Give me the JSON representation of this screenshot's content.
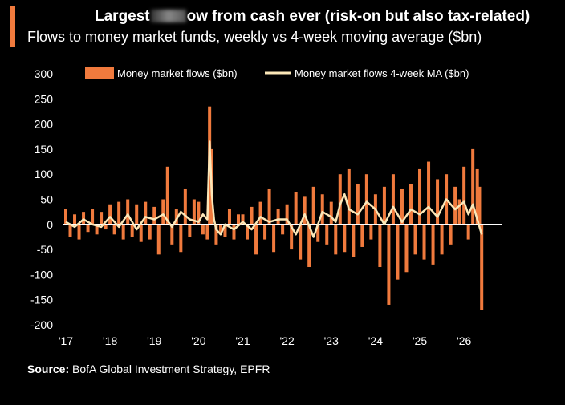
{
  "header": {
    "title_prefix": "Largest",
    "title_suffix": "ow from cash ever (risk-on but also tax-related)",
    "subtitle": "Flows to money market funds, weekly vs 4-week moving average ($bn)"
  },
  "source": {
    "label": "Source:",
    "text": " BofA Global Investment Strategy, EPFR"
  },
  "colors": {
    "bar": "#f07a3d",
    "line": "#fbe7b8",
    "background": "#000000",
    "zero_line": "#ffffff"
  },
  "chart_data": {
    "type": "bar",
    "ylim": [
      -200,
      300
    ],
    "yticks": [
      300,
      250,
      200,
      150,
      100,
      50,
      0,
      -50,
      -100,
      -150,
      -200
    ],
    "xlim": [
      2017,
      2026.85
    ],
    "xticks": [
      {
        "label": "'17",
        "x": 2017
      },
      {
        "label": "'18",
        "x": 2018
      },
      {
        "label": "'19",
        "x": 2019
      },
      {
        "label": "'20",
        "x": 2020
      },
      {
        "label": "'21",
        "x": 2021
      },
      {
        "label": "'22",
        "x": 2022
      },
      {
        "label": "'23",
        "x": 2023
      },
      {
        "label": "'24",
        "x": 2024
      },
      {
        "label": "'25",
        "x": 2025
      },
      {
        "label": "'26",
        "x": 2026
      }
    ],
    "legend_position": "top",
    "series": [
      {
        "name": "Money market flows ($bn)",
        "kind": "bar",
        "x": [
          2017.0,
          2017.1,
          2017.2,
          2017.3,
          2017.4,
          2017.5,
          2017.6,
          2017.7,
          2017.8,
          2017.9,
          2018.0,
          2018.1,
          2018.2,
          2018.3,
          2018.4,
          2018.5,
          2018.6,
          2018.7,
          2018.8,
          2018.9,
          2019.0,
          2019.1,
          2019.2,
          2019.3,
          2019.4,
          2019.5,
          2019.6,
          2019.7,
          2019.8,
          2019.9,
          2020.0,
          2020.1,
          2020.2,
          2020.25,
          2020.3,
          2020.4,
          2020.5,
          2020.6,
          2020.7,
          2020.8,
          2020.9,
          2021.0,
          2021.1,
          2021.2,
          2021.3,
          2021.4,
          2021.5,
          2021.6,
          2021.7,
          2021.8,
          2021.9,
          2022.0,
          2022.1,
          2022.2,
          2022.3,
          2022.4,
          2022.5,
          2022.6,
          2022.7,
          2022.8,
          2022.9,
          2023.0,
          2023.1,
          2023.2,
          2023.3,
          2023.4,
          2023.5,
          2023.6,
          2023.7,
          2023.8,
          2023.9,
          2024.0,
          2024.1,
          2024.2,
          2024.3,
          2024.4,
          2024.5,
          2024.6,
          2024.7,
          2024.8,
          2024.9,
          2025.0,
          2025.1,
          2025.2,
          2025.3,
          2025.4,
          2025.5,
          2025.6,
          2025.7,
          2025.8,
          2025.9,
          2026.0,
          2026.1,
          2026.2,
          2026.3,
          2026.35,
          2026.4
        ],
        "values": [
          30,
          -25,
          20,
          -30,
          25,
          -15,
          30,
          -20,
          25,
          -10,
          40,
          -20,
          45,
          -30,
          50,
          -25,
          40,
          -35,
          45,
          -30,
          35,
          -60,
          50,
          115,
          -40,
          30,
          -55,
          70,
          -25,
          50,
          45,
          -20,
          -30,
          235,
          150,
          -40,
          -20,
          -25,
          30,
          -30,
          20,
          20,
          -30,
          35,
          -60,
          45,
          -30,
          70,
          -55,
          30,
          -20,
          40,
          -50,
          65,
          -70,
          55,
          -85,
          75,
          -35,
          60,
          -40,
          45,
          -60,
          100,
          -55,
          110,
          -65,
          80,
          -45,
          100,
          -30,
          60,
          -85,
          75,
          -160,
          100,
          -110,
          70,
          -95,
          80,
          -60,
          110,
          -70,
          125,
          -80,
          90,
          -60,
          100,
          -40,
          75,
          50,
          115,
          -30,
          150,
          110,
          75,
          -170
        ]
      },
      {
        "name": "Money market flows 4-week MA ($bn)",
        "kind": "line",
        "x": [
          2017.0,
          2017.2,
          2017.4,
          2017.6,
          2017.8,
          2018.0,
          2018.2,
          2018.4,
          2018.6,
          2018.8,
          2019.0,
          2019.2,
          2019.4,
          2019.6,
          2019.8,
          2020.0,
          2020.1,
          2020.2,
          2020.25,
          2020.3,
          2020.35,
          2020.4,
          2020.5,
          2020.6,
          2020.8,
          2021.0,
          2021.2,
          2021.4,
          2021.6,
          2021.8,
          2022.0,
          2022.2,
          2022.4,
          2022.6,
          2022.8,
          2023.0,
          2023.1,
          2023.2,
          2023.3,
          2023.4,
          2023.6,
          2023.8,
          2024.0,
          2024.2,
          2024.4,
          2024.6,
          2024.8,
          2025.0,
          2025.2,
          2025.4,
          2025.6,
          2025.8,
          2026.0,
          2026.1,
          2026.2,
          2026.3,
          2026.4
        ],
        "values": [
          5,
          -5,
          10,
          0,
          -5,
          15,
          -5,
          20,
          -10,
          15,
          10,
          20,
          -5,
          25,
          10,
          5,
          20,
          10,
          165,
          60,
          10,
          -10,
          -20,
          0,
          -10,
          5,
          -10,
          15,
          5,
          10,
          10,
          -20,
          20,
          -25,
          25,
          15,
          5,
          40,
          60,
          30,
          20,
          45,
          30,
          0,
          35,
          5,
          30,
          20,
          35,
          15,
          50,
          30,
          45,
          20,
          40,
          10,
          -20
        ]
      }
    ]
  }
}
